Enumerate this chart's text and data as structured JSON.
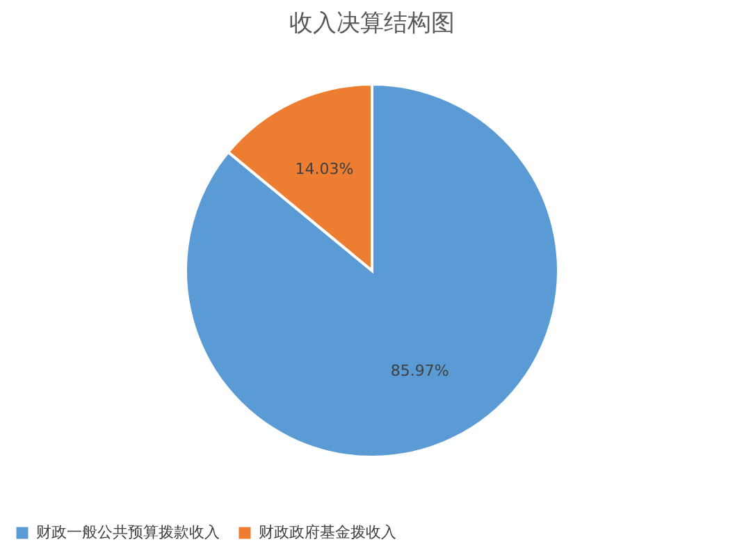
{
  "chart_data": {
    "type": "pie",
    "title": "收入决算结构图",
    "categories": [
      "财政一般公共预算拨款收入",
      "财政政府基金拨收入"
    ],
    "values": [
      85.97,
      14.03
    ],
    "colors": [
      "#5b9bd5",
      "#ed7d31"
    ],
    "value_labels": [
      "85.97%",
      "14.03%"
    ],
    "legend": "bottom"
  }
}
